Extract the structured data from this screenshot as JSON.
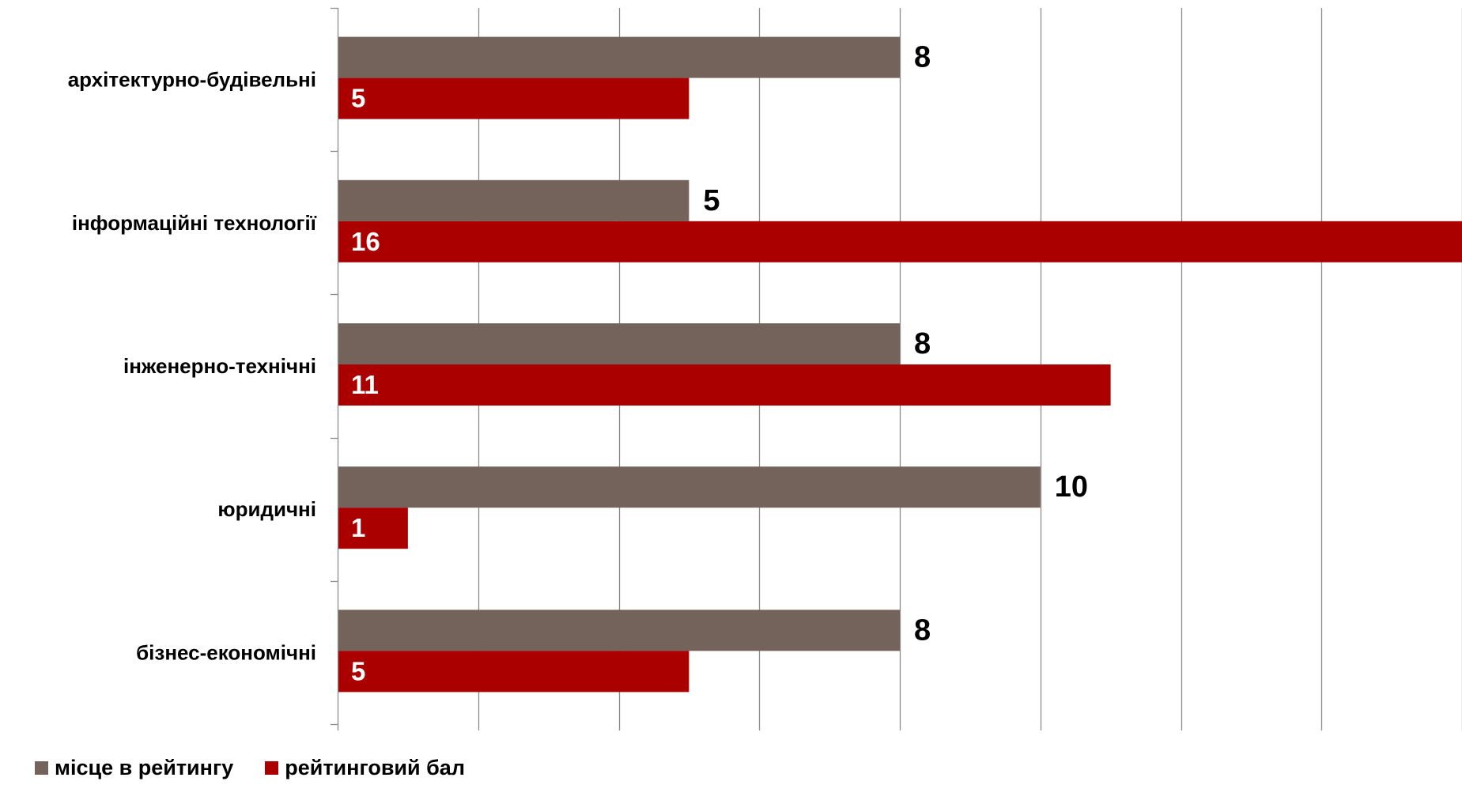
{
  "chart_data": {
    "type": "bar",
    "orientation": "horizontal",
    "categories": [
      "архітектурно-будівельні",
      "інформаційні технології",
      "інженерно-технічні",
      "юридичні",
      "бізнес-економічні"
    ],
    "series": [
      {
        "name": "місце в рейтингу",
        "values": [
          8,
          5,
          8,
          10,
          8
        ],
        "color": "#74635A"
      },
      {
        "name": "рейтинговий бал",
        "values": [
          5,
          16,
          11,
          1,
          5
        ],
        "color": "#AA0000"
      }
    ],
    "xlim": [
      0,
      16
    ],
    "x_gridlines_every": 2,
    "grid": true,
    "legend": "bottom-left",
    "title": "",
    "xlabel": "",
    "ylabel": ""
  }
}
